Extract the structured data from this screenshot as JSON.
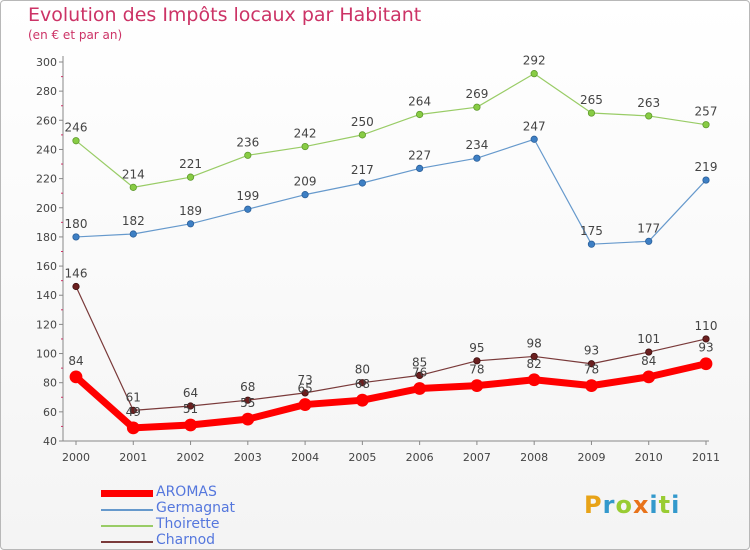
{
  "title": "Evolution des Impôts locaux par Habitant",
  "subtitle": "(en € et par an)",
  "logo": {
    "letters": [
      "P",
      "r",
      "o",
      "x",
      "i",
      "t",
      "i"
    ],
    "colors": [
      "#e8a317",
      "#3399cc",
      "#99cc33",
      "#e8731a",
      "#3399cc",
      "#99cc33",
      "#3399cc"
    ]
  },
  "chart_data": {
    "type": "line",
    "title": "Evolution des Impôts locaux par Habitant",
    "subtitle": "(en € et par an)",
    "xlabel": "",
    "ylabel": "",
    "categories": [
      "2000",
      "2001",
      "2002",
      "2003",
      "2004",
      "2005",
      "2006",
      "2007",
      "2008",
      "2009",
      "2010",
      "2011"
    ],
    "ylim": [
      40,
      300
    ],
    "yticks": [
      40,
      60,
      80,
      100,
      120,
      140,
      160,
      180,
      200,
      220,
      240,
      260,
      280,
      300
    ],
    "grid": false,
    "legend_position": "bottom-left",
    "series": [
      {
        "name": "AROMAS",
        "color": "#ff0000",
        "values": [
          84,
          49,
          51,
          55,
          65,
          68,
          76,
          78,
          82,
          78,
          84,
          93
        ],
        "labels": [
          "84",
          "49",
          "51",
          "55",
          "65",
          "68",
          "76",
          "78",
          "82",
          "78",
          "84",
          "93"
        ]
      },
      {
        "name": "Germagnat",
        "color": "#6699cc",
        "values": [
          180,
          182,
          189,
          199,
          209,
          217,
          227,
          234,
          247,
          175,
          177,
          219
        ],
        "labels": [
          "180",
          "182",
          "189",
          "199",
          "209",
          "217",
          "227",
          "234",
          "247",
          "175",
          "177",
          "219"
        ]
      },
      {
        "name": "Thoirette",
        "color": "#99cc66",
        "values": [
          246,
          214,
          221,
          236,
          242,
          250,
          264,
          269,
          292,
          265,
          263,
          257
        ],
        "labels": [
          "246",
          "214",
          "221",
          "236",
          "242",
          "250",
          "264",
          "269",
          "292",
          "265",
          "263",
          "257"
        ]
      },
      {
        "name": "Charnod",
        "color": "#7a3a3a",
        "values": [
          146,
          61,
          64,
          68,
          73,
          80,
          85,
          95,
          98,
          93,
          101,
          110
        ],
        "labels": [
          "146",
          "61",
          "64",
          "68",
          "73",
          "80",
          "85",
          "95",
          "98",
          "93",
          "101",
          "110"
        ]
      }
    ]
  }
}
